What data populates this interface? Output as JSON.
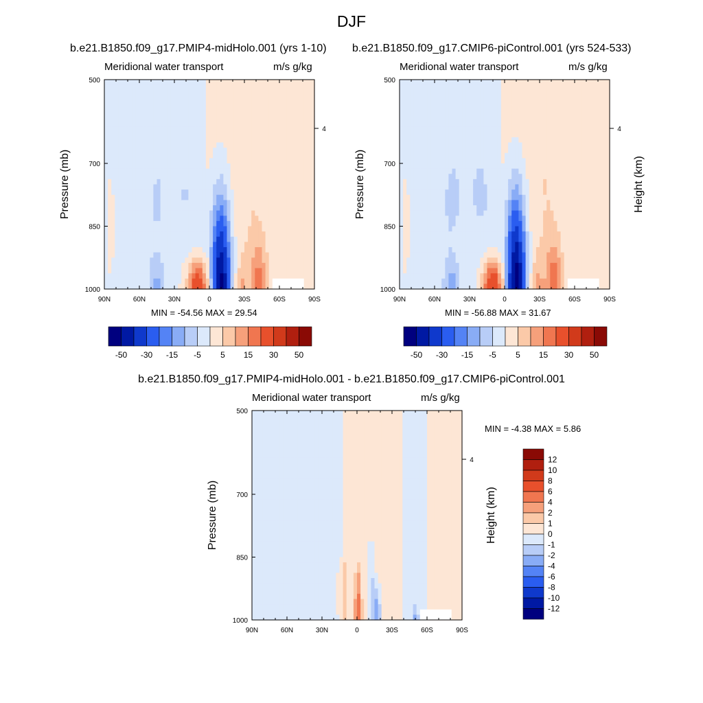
{
  "figure": {
    "title": "DJF",
    "panel_titles": [
      "b.e21.B1850.f09_g17.PMIP4-midHolo.001 (yrs 1-10)",
      "b.e21.B1850.f09_g17.CMIP6-piControl.001 (yrs 524-533)",
      "b.e21.B1850.f09_g17.PMIP4-midHolo.001 - b.e21.B1850.f09_g17.CMIP6-piControl.001"
    ]
  },
  "chart_data": [
    {
      "type": "heatmap",
      "title": "Meridional water transport",
      "units": "m/s g/kg",
      "ylabel": "Pressure (mb)",
      "right_axis_label": "",
      "x_ticklabels": [
        "90N",
        "60N",
        "30N",
        "0",
        "30S",
        "60S",
        "90S"
      ],
      "y_ticklabels": [
        "500",
        "700",
        "850",
        "1000"
      ],
      "right_ticklabels": [
        "4"
      ],
      "minmax_text": "MIN = -54.56  MAX =  29.54",
      "colorbar_ticklabels": [
        "-50",
        "-30",
        "-15",
        "-5",
        "5",
        "15",
        "30",
        "50"
      ],
      "palette": [
        "#00007f",
        "#0019a3",
        "#0f39cc",
        "#2a5df0",
        "#5483f5",
        "#89acf6",
        "#b8cdf7",
        "#dce9fb",
        "#fde6d5",
        "#fbc9a8",
        "#f6a07b",
        "#f07650",
        "#e8502c",
        "#d13a1b",
        "#b01f0f",
        "#8a0a05"
      ],
      "anomalies": [
        {
          "lat": -35,
          "p": 740,
          "amp": 2.8,
          "wx": 11,
          "wy": 220
        },
        {
          "lat": -42,
          "p": 1000,
          "amp": 16,
          "wx": 7,
          "wy": 110
        },
        {
          "lat": -27,
          "p": 1000,
          "amp": 10,
          "wx": 6,
          "wy": 85
        },
        {
          "lat": -24,
          "p": 960,
          "amp": -4,
          "wx": 5,
          "wy": 70
        },
        {
          "lat": -10,
          "p": 1000,
          "amp": -54.56,
          "wx": 7.5,
          "wy": 170
        },
        {
          "lat": -7,
          "p": 800,
          "amp": -3.5,
          "wx": 11,
          "wy": 150
        },
        {
          "lat": 10,
          "p": 1000,
          "amp": 29.54,
          "wx": 8,
          "wy": 65
        },
        {
          "lat": 25,
          "p": 960,
          "amp": 2.5,
          "wx": 18,
          "wy": 100
        },
        {
          "lat": 20,
          "p": 790,
          "amp": -3,
          "wx": 12,
          "wy": 180
        },
        {
          "lat": 45,
          "p": 800,
          "amp": -3.2,
          "wx": 14,
          "wy": 230
        },
        {
          "lat": 45,
          "p": 1000,
          "amp": -9,
          "wx": 6,
          "wy": 60
        },
        {
          "lat": 85,
          "p": 850,
          "amp": 4,
          "wx": 4,
          "wy": 140
        }
      ]
    },
    {
      "type": "heatmap",
      "title": "Meridional water transport",
      "units": "m/s g/kg",
      "ylabel": "Pressure (mb)",
      "right_axis_label": "Height (km)",
      "x_ticklabels": [
        "90N",
        "60N",
        "30N",
        "0",
        "30S",
        "60S",
        "90S"
      ],
      "y_ticklabels": [
        "500",
        "700",
        "850",
        "1000"
      ],
      "right_ticklabels": [
        "4"
      ],
      "minmax_text": "MIN = -56.88  MAX =  31.67",
      "colorbar_ticklabels": [
        "-50",
        "-30",
        "-15",
        "-5",
        "5",
        "15",
        "30",
        "50"
      ],
      "palette": [
        "#00007f",
        "#0019a3",
        "#0f39cc",
        "#2a5df0",
        "#5483f5",
        "#89acf6",
        "#b8cdf7",
        "#dce9fb",
        "#fde6d5",
        "#fbc9a8",
        "#f6a07b",
        "#f07650",
        "#e8502c",
        "#d13a1b",
        "#b01f0f",
        "#8a0a05"
      ],
      "anomalies": [
        {
          "lat": -35,
          "p": 740,
          "amp": 3,
          "wx": 11,
          "wy": 220
        },
        {
          "lat": -42,
          "p": 1000,
          "amp": 17,
          "wx": 7,
          "wy": 110
        },
        {
          "lat": -27,
          "p": 1000,
          "amp": 11,
          "wx": 6,
          "wy": 85
        },
        {
          "lat": -24,
          "p": 960,
          "amp": -4,
          "wx": 5,
          "wy": 70
        },
        {
          "lat": -10,
          "p": 1000,
          "amp": -56.88,
          "wx": 7.5,
          "wy": 180
        },
        {
          "lat": -7,
          "p": 800,
          "amp": -3.8,
          "wx": 11,
          "wy": 150
        },
        {
          "lat": 10,
          "p": 1000,
          "amp": 31.67,
          "wx": 8,
          "wy": 65
        },
        {
          "lat": 25,
          "p": 960,
          "amp": 2.5,
          "wx": 18,
          "wy": 100
        },
        {
          "lat": 20,
          "p": 790,
          "amp": -3.4,
          "wx": 12,
          "wy": 180
        },
        {
          "lat": 45,
          "p": 800,
          "amp": -3.4,
          "wx": 14,
          "wy": 230
        },
        {
          "lat": 45,
          "p": 1000,
          "amp": -10,
          "wx": 6,
          "wy": 60
        },
        {
          "lat": 85,
          "p": 850,
          "amp": 4,
          "wx": 4,
          "wy": 140
        }
      ]
    },
    {
      "type": "heatmap",
      "title": "Meridional water transport",
      "units": "m/s g/kg",
      "ylabel": "Pressure (mb)",
      "right_axis_label": "Height (km)",
      "x_ticklabels": [
        "90N",
        "60N",
        "30N",
        "0",
        "30S",
        "60S",
        "90S"
      ],
      "y_ticklabels": [
        "500",
        "700",
        "850",
        "1000"
      ],
      "right_ticklabels": [
        "4"
      ],
      "minmax_text": "MIN =  -4.38  MAX =   5.86",
      "colorbar_ticklabels": [
        "12",
        "10",
        "8",
        "6",
        "4",
        "2",
        "1",
        "0",
        "-1",
        "-2",
        "-4",
        "-6",
        "-8",
        "-10",
        "-12"
      ],
      "palette": [
        "#00007f",
        "#0019a3",
        "#0f39cc",
        "#2a5df0",
        "#5483f5",
        "#89acf6",
        "#b8cdf7",
        "#dce9fb",
        "#fde6d5",
        "#fbc9a8",
        "#f6a07b",
        "#f07650",
        "#e8502c",
        "#d13a1b",
        "#b01f0f",
        "#8a0a05"
      ],
      "anomalies": [
        {
          "lat": -1,
          "p": 990,
          "amp": 5.86,
          "wx": 2.5,
          "wy": 90
        },
        {
          "lat": -17,
          "p": 1000,
          "amp": -4.38,
          "wx": 3,
          "wy": 70
        },
        {
          "lat": -50,
          "p": 1000,
          "amp": -1.8,
          "wx": 2.5,
          "wy": 40
        },
        {
          "lat": 12,
          "p": 940,
          "amp": 1.5,
          "wx": 5,
          "wy": 90
        },
        {
          "lat": -12,
          "p": 900,
          "amp": -1.5,
          "wx": 3,
          "wy": 80
        }
      ]
    }
  ]
}
